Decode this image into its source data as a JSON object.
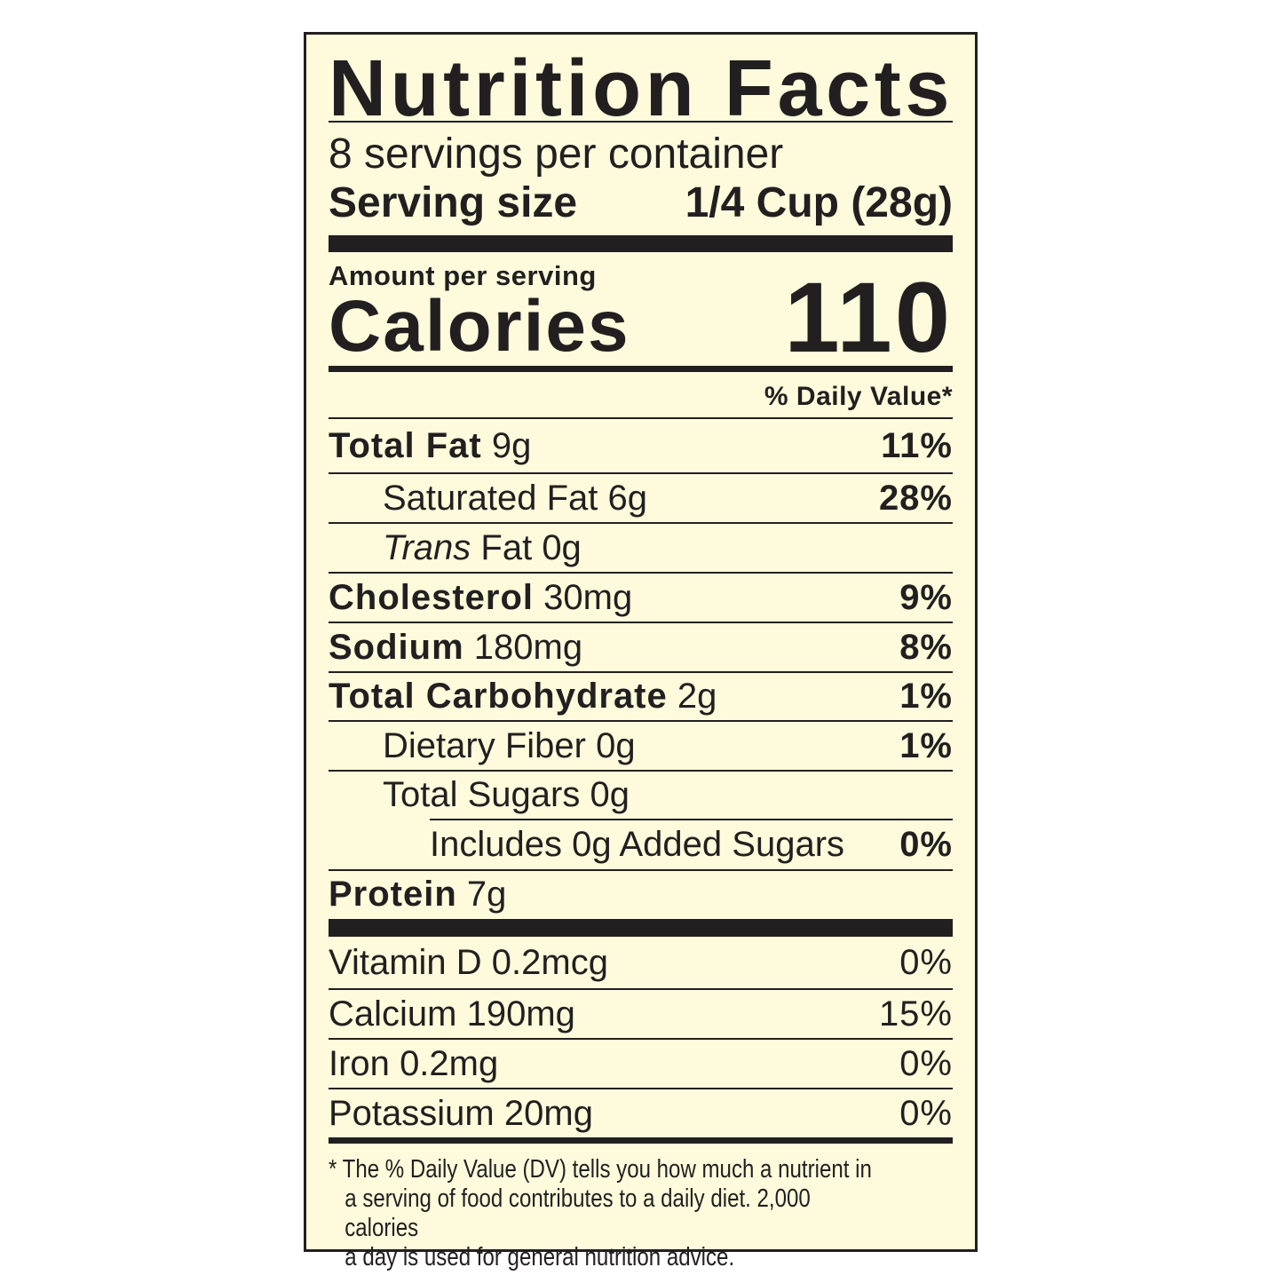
{
  "title": "Nutrition Facts",
  "servings_per_container": "8 servings per container",
  "serving_size": {
    "label": "Serving size",
    "value": "1/4 Cup (28g)"
  },
  "amount_per_serving": "Amount per serving",
  "calories": {
    "label": "Calories",
    "value": "110"
  },
  "daily_value_header": "% Daily Value*",
  "nutrients": [
    {
      "name": "Total Fat",
      "amount": "9g",
      "dv": "11%",
      "bold": true,
      "indent": 0
    },
    {
      "name": "Saturated Fat",
      "amount": "6g",
      "dv": "28%",
      "bold": false,
      "indent": 1
    },
    {
      "name_italic": "Trans",
      "name": " Fat",
      "amount": "0g",
      "dv": "",
      "bold": false,
      "indent": 1
    },
    {
      "name": "Cholesterol",
      "amount": "30mg",
      "dv": "9%",
      "bold": true,
      "indent": 0
    },
    {
      "name": "Sodium",
      "amount": "180mg",
      "dv": "8%",
      "bold": true,
      "indent": 0
    },
    {
      "name": "Total Carbohydrate",
      "amount": "2g",
      "dv": "1%",
      "bold": true,
      "indent": 0
    },
    {
      "name": "Dietary Fiber",
      "amount": "0g",
      "dv": "1%",
      "bold": false,
      "indent": 1
    },
    {
      "name": "Total Sugars",
      "amount": "0g",
      "dv": "",
      "bold": false,
      "indent": 1
    },
    {
      "name": "Includes 0g Added Sugars",
      "amount": "",
      "dv": "0%",
      "bold": false,
      "indent": 2
    },
    {
      "name": "Protein",
      "amount": "7g",
      "dv": "",
      "bold": true,
      "indent": 0
    }
  ],
  "vitamins": [
    {
      "name": "Vitamin D",
      "amount": "0.2mcg",
      "dv": "0%"
    },
    {
      "name": "Calcium",
      "amount": "190mg",
      "dv": "15%"
    },
    {
      "name": "Iron",
      "amount": "0.2mg",
      "dv": "0%"
    },
    {
      "name": "Potassium",
      "amount": "20mg",
      "dv": "0%"
    }
  ],
  "footnote": {
    "line1": "* The % Daily Value (DV) tells you how much a nutrient in",
    "line2": "a serving of food contributes to a daily diet. 2,000 calories",
    "line3": "a day is used for general nutrition advice."
  },
  "colors": {
    "background": "#fdfbdc",
    "ink": "#231f20"
  }
}
